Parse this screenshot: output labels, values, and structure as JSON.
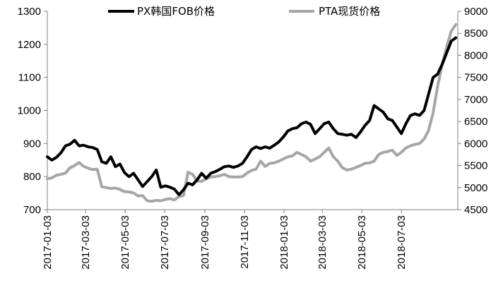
{
  "chart_data": {
    "type": "line",
    "title": "",
    "x_axis": {
      "type": "date",
      "range": [
        "2017-01-03",
        "2018-09-28"
      ],
      "ticks": [
        "2017-01-03",
        "2017-03-03",
        "2017-05-03",
        "2017-07-03",
        "2017-09-03",
        "2017-11-03",
        "2018-01-03",
        "2018-03-03",
        "2018-05-03",
        "2018-07-03"
      ]
    },
    "y_left": {
      "range": [
        700,
        1300
      ],
      "ticks": [
        700,
        800,
        900,
        1000,
        1100,
        1200,
        1300
      ]
    },
    "y_right": {
      "range": [
        4500,
        9000
      ],
      "ticks": [
        4500,
        5000,
        5500,
        6000,
        6500,
        7000,
        7500,
        8000,
        8500,
        9000
      ]
    },
    "grid": false,
    "legend_position": "top",
    "series": [
      {
        "name": "PX韩国FOB价格",
        "axis": "left",
        "color": "#000000",
        "points": [
          [
            "2017-01-03",
            860
          ],
          [
            "2017-01-10",
            850
          ],
          [
            "2017-01-17",
            858
          ],
          [
            "2017-01-24",
            872
          ],
          [
            "2017-01-31",
            893
          ],
          [
            "2017-02-07",
            898
          ],
          [
            "2017-02-14",
            910
          ],
          [
            "2017-02-21",
            893
          ],
          [
            "2017-02-28",
            895
          ],
          [
            "2017-03-07",
            890
          ],
          [
            "2017-03-14",
            888
          ],
          [
            "2017-03-21",
            882
          ],
          [
            "2017-03-28",
            845
          ],
          [
            "2017-04-04",
            840
          ],
          [
            "2017-04-11",
            860
          ],
          [
            "2017-04-18",
            830
          ],
          [
            "2017-04-25",
            838
          ],
          [
            "2017-05-02",
            812
          ],
          [
            "2017-05-09",
            800
          ],
          [
            "2017-05-16",
            810
          ],
          [
            "2017-05-23",
            790
          ],
          [
            "2017-05-30",
            770
          ],
          [
            "2017-06-06",
            785
          ],
          [
            "2017-06-13",
            800
          ],
          [
            "2017-06-20",
            820
          ],
          [
            "2017-06-27",
            768
          ],
          [
            "2017-07-04",
            772
          ],
          [
            "2017-07-11",
            768
          ],
          [
            "2017-07-18",
            762
          ],
          [
            "2017-07-25",
            745
          ],
          [
            "2017-08-01",
            760
          ],
          [
            "2017-08-08",
            780
          ],
          [
            "2017-08-15",
            775
          ],
          [
            "2017-08-22",
            790
          ],
          [
            "2017-08-29",
            810
          ],
          [
            "2017-09-05",
            795
          ],
          [
            "2017-09-12",
            810
          ],
          [
            "2017-09-19",
            815
          ],
          [
            "2017-09-26",
            822
          ],
          [
            "2017-10-03",
            830
          ],
          [
            "2017-10-10",
            832
          ],
          [
            "2017-10-17",
            828
          ],
          [
            "2017-10-24",
            832
          ],
          [
            "2017-10-31",
            840
          ],
          [
            "2017-11-07",
            860
          ],
          [
            "2017-11-14",
            882
          ],
          [
            "2017-11-21",
            890
          ],
          [
            "2017-11-28",
            885
          ],
          [
            "2017-12-05",
            890
          ],
          [
            "2017-12-12",
            886
          ],
          [
            "2017-12-19",
            895
          ],
          [
            "2017-12-26",
            905
          ],
          [
            "2018-01-02",
            920
          ],
          [
            "2018-01-09",
            938
          ],
          [
            "2018-01-16",
            945
          ],
          [
            "2018-01-23",
            948
          ],
          [
            "2018-01-30",
            960
          ],
          [
            "2018-02-06",
            965
          ],
          [
            "2018-02-13",
            958
          ],
          [
            "2018-02-20",
            930
          ],
          [
            "2018-02-27",
            945
          ],
          [
            "2018-03-06",
            960
          ],
          [
            "2018-03-13",
            965
          ],
          [
            "2018-03-20",
            945
          ],
          [
            "2018-03-27",
            930
          ],
          [
            "2018-04-03",
            928
          ],
          [
            "2018-04-10",
            925
          ],
          [
            "2018-04-17",
            928
          ],
          [
            "2018-04-24",
            918
          ],
          [
            "2018-05-01",
            935
          ],
          [
            "2018-05-08",
            955
          ],
          [
            "2018-05-15",
            970
          ],
          [
            "2018-05-22",
            1015
          ],
          [
            "2018-05-29",
            1005
          ],
          [
            "2018-06-05",
            995
          ],
          [
            "2018-06-12",
            975
          ],
          [
            "2018-06-19",
            970
          ],
          [
            "2018-06-26",
            950
          ],
          [
            "2018-07-03",
            930
          ],
          [
            "2018-07-10",
            960
          ],
          [
            "2018-07-17",
            985
          ],
          [
            "2018-07-24",
            990
          ],
          [
            "2018-07-31",
            985
          ],
          [
            "2018-08-07",
            1000
          ],
          [
            "2018-08-14",
            1050
          ],
          [
            "2018-08-21",
            1100
          ],
          [
            "2018-08-28",
            1110
          ],
          [
            "2018-09-04",
            1140
          ],
          [
            "2018-09-11",
            1175
          ],
          [
            "2018-09-18",
            1210
          ],
          [
            "2018-09-25",
            1220
          ]
        ]
      },
      {
        "name": "PTA现货价格",
        "axis": "right",
        "color": "#a6a6a6",
        "points": [
          [
            "2017-01-03",
            5200
          ],
          [
            "2017-01-10",
            5220
          ],
          [
            "2017-01-17",
            5280
          ],
          [
            "2017-01-24",
            5300
          ],
          [
            "2017-01-31",
            5330
          ],
          [
            "2017-02-07",
            5450
          ],
          [
            "2017-02-14",
            5500
          ],
          [
            "2017-02-21",
            5570
          ],
          [
            "2017-02-28",
            5480
          ],
          [
            "2017-03-07",
            5440
          ],
          [
            "2017-03-14",
            5410
          ],
          [
            "2017-03-21",
            5420
          ],
          [
            "2017-03-28",
            5020
          ],
          [
            "2017-04-04",
            5000
          ],
          [
            "2017-04-11",
            4980
          ],
          [
            "2017-04-18",
            4990
          ],
          [
            "2017-04-25",
            4960
          ],
          [
            "2017-05-02",
            4910
          ],
          [
            "2017-05-09",
            4900
          ],
          [
            "2017-05-16",
            4880
          ],
          [
            "2017-05-23",
            4810
          ],
          [
            "2017-05-30",
            4820
          ],
          [
            "2017-06-06",
            4700
          ],
          [
            "2017-06-13",
            4690
          ],
          [
            "2017-06-20",
            4710
          ],
          [
            "2017-06-27",
            4700
          ],
          [
            "2017-07-04",
            4730
          ],
          [
            "2017-07-11",
            4750
          ],
          [
            "2017-07-18",
            4720
          ],
          [
            "2017-07-25",
            4800
          ],
          [
            "2017-08-01",
            4820
          ],
          [
            "2017-08-08",
            5350
          ],
          [
            "2017-08-15",
            5300
          ],
          [
            "2017-08-22",
            5150
          ],
          [
            "2017-08-29",
            5140
          ],
          [
            "2017-09-05",
            5200
          ],
          [
            "2017-09-12",
            5240
          ],
          [
            "2017-09-19",
            5250
          ],
          [
            "2017-09-26",
            5270
          ],
          [
            "2017-10-03",
            5300
          ],
          [
            "2017-10-10",
            5250
          ],
          [
            "2017-10-17",
            5240
          ],
          [
            "2017-10-24",
            5240
          ],
          [
            "2017-10-31",
            5250
          ],
          [
            "2017-11-07",
            5330
          ],
          [
            "2017-11-14",
            5390
          ],
          [
            "2017-11-21",
            5420
          ],
          [
            "2017-11-28",
            5600
          ],
          [
            "2017-12-05",
            5480
          ],
          [
            "2017-12-12",
            5550
          ],
          [
            "2017-12-19",
            5560
          ],
          [
            "2017-12-26",
            5600
          ],
          [
            "2018-01-02",
            5650
          ],
          [
            "2018-01-09",
            5700
          ],
          [
            "2018-01-16",
            5720
          ],
          [
            "2018-01-23",
            5800
          ],
          [
            "2018-01-30",
            5750
          ],
          [
            "2018-02-06",
            5700
          ],
          [
            "2018-02-13",
            5600
          ],
          [
            "2018-02-20",
            5650
          ],
          [
            "2018-02-27",
            5700
          ],
          [
            "2018-03-06",
            5800
          ],
          [
            "2018-03-13",
            5900
          ],
          [
            "2018-03-20",
            5700
          ],
          [
            "2018-03-27",
            5600
          ],
          [
            "2018-04-03",
            5450
          ],
          [
            "2018-04-10",
            5400
          ],
          [
            "2018-04-17",
            5420
          ],
          [
            "2018-04-24",
            5460
          ],
          [
            "2018-05-01",
            5500
          ],
          [
            "2018-05-08",
            5550
          ],
          [
            "2018-05-15",
            5560
          ],
          [
            "2018-05-22",
            5600
          ],
          [
            "2018-05-29",
            5750
          ],
          [
            "2018-06-05",
            5800
          ],
          [
            "2018-06-12",
            5820
          ],
          [
            "2018-06-19",
            5850
          ],
          [
            "2018-06-26",
            5730
          ],
          [
            "2018-07-03",
            5800
          ],
          [
            "2018-07-10",
            5900
          ],
          [
            "2018-07-17",
            5950
          ],
          [
            "2018-07-24",
            5980
          ],
          [
            "2018-07-31",
            6000
          ],
          [
            "2018-08-07",
            6100
          ],
          [
            "2018-08-14",
            6300
          ],
          [
            "2018-08-21",
            6700
          ],
          [
            "2018-08-28",
            7300
          ],
          [
            "2018-09-04",
            7800
          ],
          [
            "2018-09-11",
            8200
          ],
          [
            "2018-09-18",
            8550
          ],
          [
            "2018-09-25",
            8700
          ]
        ]
      }
    ]
  }
}
